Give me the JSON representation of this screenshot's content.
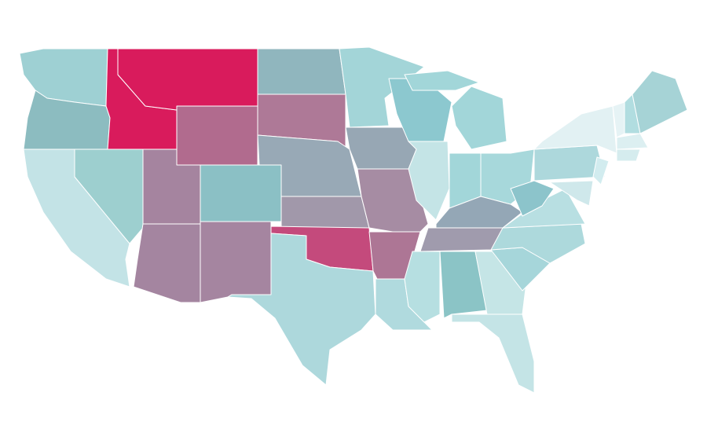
{
  "map": {
    "background": "#ffffff",
    "border_color": "#ffffff",
    "region_colors": [
      "#9ed0d3",
      "#8cbcc0",
      "#c3e3e6",
      "#9dcfcf",
      "#d91b5c",
      "#d91b5c",
      "#b16b8e",
      "#a5849f",
      "#8bc0c5",
      "#a485a0",
      "#a585a0",
      "#90b6be",
      "#ae7997",
      "#98a9b6",
      "#a198aa",
      "#c44a7c",
      "#add8dc",
      "#a3d5d8",
      "#97a7b4",
      "#a68ca3",
      "#ad7695",
      "#b0dade",
      "#8cc8cf",
      "#c4e4e6",
      "#a2d6d9",
      "#a2d6d9",
      "#a2d6d9",
      "#a7d8db",
      "#94a7b6",
      "#a09bad",
      "#b6dfe1",
      "#8bc4c6",
      "#c5e5e6",
      "#c4e4e6",
      "#a6d6da",
      "#add9dc",
      "#b8dfe2",
      "#8cc4cb",
      "#add8dc",
      "#e2f1f3",
      "#d2ecef",
      "#cfe8eb",
      "#e6f3f5",
      "#b1dde0",
      "#a6d3d6",
      "#dceff1",
      "#d5ecee"
    ]
  }
}
